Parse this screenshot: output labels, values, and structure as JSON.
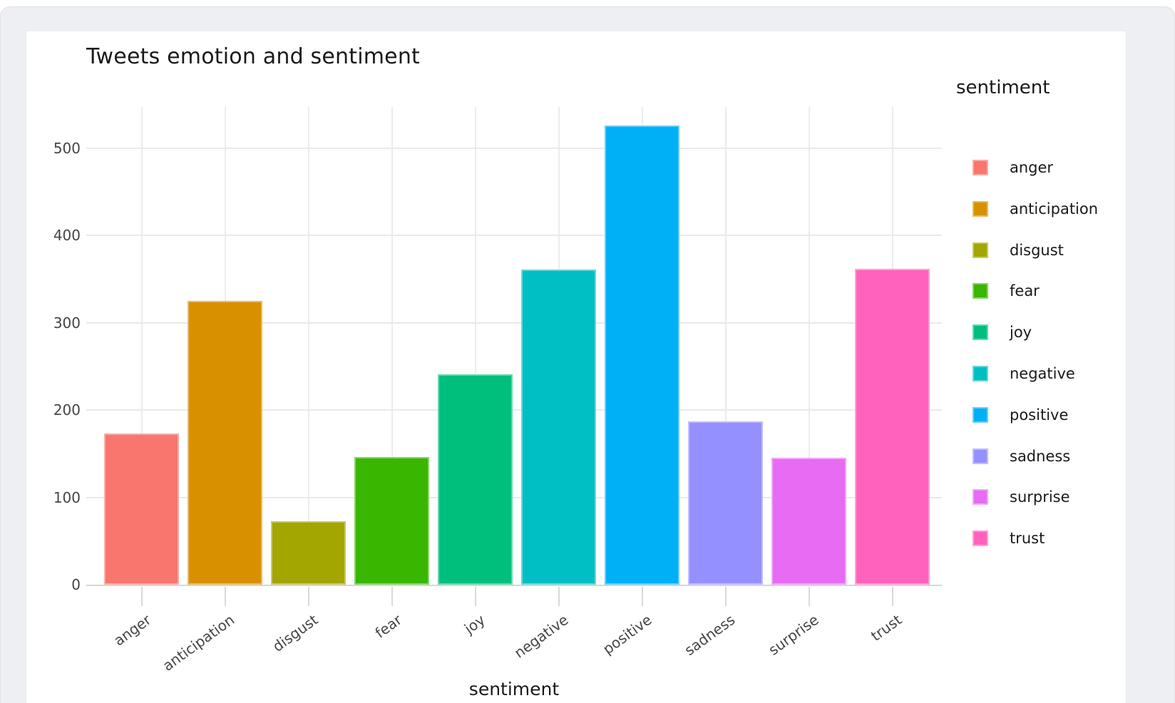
{
  "page": {
    "background_color": "#edeff2",
    "card_color": "#ffffff"
  },
  "chart_data": {
    "type": "bar",
    "title": "Tweets emotion and sentiment",
    "xlabel": "sentiment",
    "ylabel": "",
    "legend_title": "sentiment",
    "legend_position": "right",
    "grid": true,
    "categories": [
      "anger",
      "anticipation",
      "disgust",
      "fear",
      "joy",
      "negative",
      "positive",
      "sadness",
      "surprise",
      "trust"
    ],
    "values": [
      173,
      325,
      73,
      146,
      241,
      361,
      526,
      187,
      145,
      362
    ],
    "colors": [
      "#F8766D",
      "#D89000",
      "#A3A500",
      "#39B600",
      "#00BF7D",
      "#00BFC4",
      "#00B0F6",
      "#9590FF",
      "#E76BF3",
      "#FF62BC"
    ],
    "y_ticks": [
      0,
      100,
      200,
      300,
      400,
      500
    ],
    "ylim": [
      0,
      547
    ],
    "legend_entries": [
      "anger",
      "anticipation",
      "disgust",
      "fear",
      "joy",
      "negative",
      "positive",
      "sadness",
      "surprise",
      "trust"
    ]
  }
}
